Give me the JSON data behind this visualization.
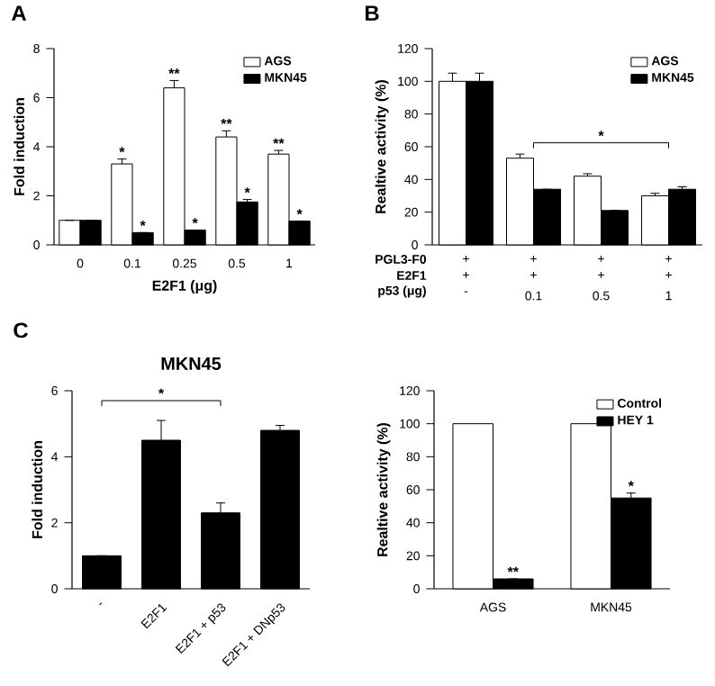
{
  "chart_data": [
    {
      "type": "bar",
      "xlabel": "E2F1 (μg)",
      "ylabel": "Fold induction",
      "categories": [
        "0",
        "0.1",
        "0.25",
        "0.5",
        "1"
      ],
      "ylim": [
        0,
        8
      ],
      "yticks": [
        0,
        2,
        4,
        6,
        8
      ],
      "legend": "top right",
      "annotations": [
        "A"
      ],
      "series": [
        {
          "name": "AGS",
          "color": "#ffffff",
          "values": [
            1.0,
            3.3,
            6.4,
            4.4,
            3.7
          ],
          "errors": [
            null,
            0.2,
            0.3,
            0.25,
            0.15
          ],
          "value_labels": [
            null,
            "*",
            "**",
            "**",
            "**"
          ]
        },
        {
          "name": "MKN45",
          "color": "#000000",
          "values": [
            1.0,
            0.5,
            0.6,
            1.75,
            0.97
          ],
          "errors": [
            null,
            null,
            null,
            0.1,
            null
          ],
          "value_labels": [
            null,
            "*",
            "*",
            "*",
            "*"
          ]
        }
      ]
    },
    {
      "type": "bar",
      "ylabel": "Realtive activity (%)",
      "categories": [
        "-",
        "0.1",
        "0.5",
        "1"
      ],
      "ylim": [
        0,
        120
      ],
      "yticks": [
        0,
        20,
        40,
        60,
        80,
        100,
        120
      ],
      "legend": "top right",
      "annotations": [
        "B",
        "PGL3-F0",
        "+",
        "+",
        "+",
        "+",
        "E2F1",
        "+",
        "+",
        "+",
        "+",
        "p53 (μg)",
        "*"
      ],
      "series": [
        {
          "name": "AGS",
          "color": "#ffffff",
          "values": [
            100,
            53,
            42,
            30
          ],
          "errors": [
            5,
            2.5,
            1.5,
            1.5
          ]
        },
        {
          "name": "MKN45",
          "color": "#000000",
          "values": [
            100,
            34,
            21,
            34
          ],
          "errors": [
            5,
            null,
            null,
            1.5
          ]
        }
      ]
    },
    {
      "type": "bar",
      "title": "MKN45",
      "ylabel": "Fold induction",
      "categories": [
        "-",
        "E2F1",
        "E2F1 + p53",
        "E2F1 + DNp53"
      ],
      "ylim": [
        0,
        6
      ],
      "yticks": [
        0,
        2,
        4,
        6
      ],
      "annotations": [
        "C",
        "*"
      ],
      "series": [
        {
          "color": "#000000",
          "values": [
            1.0,
            4.5,
            2.3,
            4.8
          ],
          "errors": [
            null,
            0.6,
            0.3,
            0.15
          ]
        }
      ]
    },
    {
      "type": "bar",
      "ylabel": "Realtive activity (%)",
      "categories": [
        "AGS",
        "MKN45"
      ],
      "ylim": [
        0,
        120
      ],
      "yticks": [
        0,
        20,
        40,
        60,
        80,
        100,
        120
      ],
      "legend": "top right",
      "series": [
        {
          "name": "Control",
          "color": "#ffffff",
          "values": [
            100,
            100
          ]
        },
        {
          "name": "HEY 1",
          "color": "#000000",
          "values": [
            6,
            55
          ],
          "errors": [
            null,
            3
          ],
          "value_labels": [
            "**",
            "*"
          ]
        }
      ]
    }
  ]
}
